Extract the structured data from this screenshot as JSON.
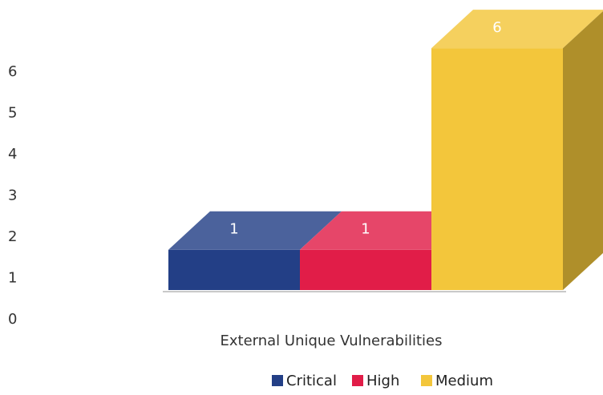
{
  "chart_data": {
    "type": "bar",
    "bar_style": "3d",
    "categories": [
      "External Unique Vulnerabilities"
    ],
    "series": [
      {
        "name": "Critical",
        "values": [
          1
        ],
        "color": "#233f86"
      },
      {
        "name": "High",
        "values": [
          1
        ],
        "color": "#e11d48"
      },
      {
        "name": "Medium",
        "values": [
          6
        ],
        "color": "#f3c63b"
      }
    ],
    "title": "",
    "xlabel": "",
    "ylabel": "",
    "ylim": [
      0,
      6
    ],
    "yticks": [
      0,
      1,
      2,
      3,
      4,
      5,
      6
    ],
    "grid": false,
    "data_labels": true,
    "legend": "bottom-right"
  }
}
